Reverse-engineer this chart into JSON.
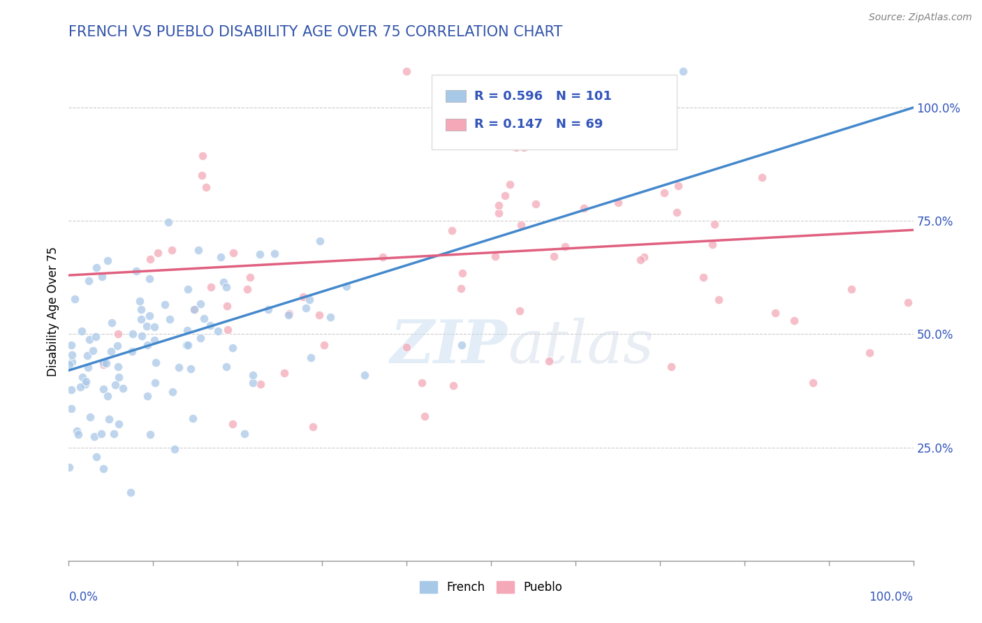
{
  "title": "FRENCH VS PUEBLO DISABILITY AGE OVER 75 CORRELATION CHART",
  "source": "Source: ZipAtlas.com",
  "ylabel": "Disability Age Over 75",
  "y_tick_labels": [
    "25.0%",
    "50.0%",
    "75.0%",
    "100.0%"
  ],
  "y_tick_values": [
    0.25,
    0.5,
    0.75,
    1.0
  ],
  "french_color": "#a8c8e8",
  "pueblo_color": "#f4a8b8",
  "french_line_color": "#4488cc",
  "pueblo_line_color": "#e06080",
  "title_color": "#3355aa",
  "annotation_color": "#3355bb",
  "background_color": "#ffffff",
  "grid_color": "#cccccc",
  "axis_color": "#999999",
  "french_R": 0.596,
  "french_N": 101,
  "pueblo_R": 0.147,
  "pueblo_N": 69,
  "xlim": [
    0.0,
    1.0
  ],
  "ylim": [
    0.0,
    1.1
  ],
  "french_slope": 0.58,
  "french_intercept": 0.42,
  "pueblo_slope": 0.1,
  "pueblo_intercept": 0.63,
  "watermark": "ZIPatlas",
  "title_fontsize": 15,
  "marker_size": 80
}
